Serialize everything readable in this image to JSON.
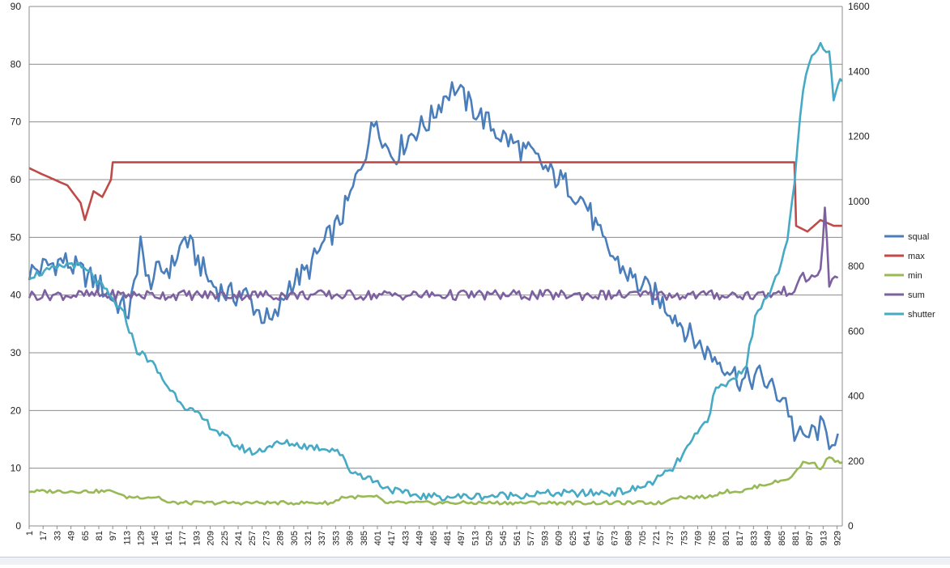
{
  "chart_data": {
    "type": "line",
    "title": "",
    "xlabel": "",
    "ylabel": "",
    "y_left": {
      "min": 0,
      "max": 90,
      "ticks": [
        0,
        10,
        20,
        30,
        40,
        50,
        60,
        70,
        80,
        90
      ]
    },
    "y_right": {
      "min": 0,
      "max": 1600,
      "ticks": [
        0,
        200,
        400,
        600,
        800,
        1000,
        1200,
        1400,
        1600
      ]
    },
    "x": {
      "min": 1,
      "max": 935,
      "tick_labels": [
        1,
        17,
        33,
        49,
        65,
        81,
        97,
        113,
        129,
        145,
        161,
        177,
        193,
        209,
        225,
        241,
        257,
        273,
        289,
        305,
        321,
        337,
        353,
        369,
        385,
        401,
        417,
        433,
        449,
        465,
        481,
        497,
        513,
        529,
        545,
        561,
        577,
        593,
        609,
        625,
        641,
        657,
        673,
        689,
        705,
        721,
        737,
        753,
        769,
        785,
        801,
        817,
        833,
        849,
        865,
        881,
        897,
        913,
        929
      ]
    },
    "grid": "horizontal",
    "legend_position": "right",
    "series": [
      {
        "name": "squal",
        "axis": "left",
        "color": "#4a7ebb",
        "points": [
          [
            1,
            44
          ],
          [
            20,
            45
          ],
          [
            40,
            46
          ],
          [
            60,
            44
          ],
          [
            80,
            42
          ],
          [
            100,
            39
          ],
          [
            115,
            37
          ],
          [
            125,
            43
          ],
          [
            129,
            52
          ],
          [
            135,
            42
          ],
          [
            150,
            44
          ],
          [
            165,
            45
          ],
          [
            180,
            50
          ],
          [
            195,
            46
          ],
          [
            210,
            42
          ],
          [
            230,
            40
          ],
          [
            250,
            40
          ],
          [
            265,
            37
          ],
          [
            280,
            35
          ],
          [
            290,
            38
          ],
          [
            300,
            42
          ],
          [
            320,
            44
          ],
          [
            340,
            49
          ],
          [
            355,
            52
          ],
          [
            370,
            57
          ],
          [
            385,
            64
          ],
          [
            400,
            71
          ],
          [
            410,
            66
          ],
          [
            420,
            64
          ],
          [
            440,
            68
          ],
          [
            460,
            70
          ],
          [
            480,
            75
          ],
          [
            490,
            76
          ],
          [
            500,
            74
          ],
          [
            520,
            71
          ],
          [
            540,
            68
          ],
          [
            560,
            66
          ],
          [
            580,
            64
          ],
          [
            600,
            61
          ],
          [
            620,
            59
          ],
          [
            640,
            56
          ],
          [
            660,
            49
          ],
          [
            680,
            45
          ],
          [
            700,
            42
          ],
          [
            720,
            40
          ],
          [
            740,
            37
          ],
          [
            760,
            33
          ],
          [
            780,
            30
          ],
          [
            800,
            28
          ],
          [
            820,
            25
          ],
          [
            840,
            26
          ],
          [
            860,
            23
          ],
          [
            870,
            22
          ],
          [
            880,
            16
          ],
          [
            890,
            15
          ],
          [
            900,
            16
          ],
          [
            910,
            17
          ],
          [
            920,
            15
          ],
          [
            930,
            16
          ]
        ]
      },
      {
        "name": "max",
        "axis": "left",
        "color": "#be4b48",
        "points": [
          [
            1,
            62
          ],
          [
            15,
            61
          ],
          [
            30,
            60
          ],
          [
            45,
            59
          ],
          [
            60,
            56
          ],
          [
            65,
            53
          ],
          [
            75,
            58
          ],
          [
            85,
            57
          ],
          [
            95,
            60
          ],
          [
            97,
            63
          ],
          [
            880,
            63
          ],
          [
            882,
            52
          ],
          [
            895,
            51
          ],
          [
            910,
            53
          ],
          [
            925,
            52
          ],
          [
            935,
            52
          ]
        ]
      },
      {
        "name": "min",
        "axis": "left",
        "color": "#98b954",
        "points": [
          [
            1,
            6
          ],
          [
            90,
            6
          ],
          [
            100,
            6
          ],
          [
            110,
            5
          ],
          [
            150,
            5
          ],
          [
            160,
            4
          ],
          [
            350,
            4
          ],
          [
            360,
            5
          ],
          [
            400,
            5
          ],
          [
            410,
            4
          ],
          [
            730,
            4
          ],
          [
            740,
            5
          ],
          [
            780,
            5
          ],
          [
            800,
            6
          ],
          [
            820,
            6
          ],
          [
            840,
            7
          ],
          [
            870,
            8
          ],
          [
            880,
            9
          ],
          [
            890,
            11
          ],
          [
            900,
            11
          ],
          [
            910,
            10
          ],
          [
            920,
            12
          ],
          [
            930,
            11
          ],
          [
            935,
            11
          ]
        ]
      },
      {
        "name": "sum",
        "axis": "left",
        "color": "#7d60a0",
        "points": [
          [
            1,
            40
          ],
          [
            100,
            40
          ],
          [
            200,
            40
          ],
          [
            300,
            40
          ],
          [
            400,
            40
          ],
          [
            500,
            40
          ],
          [
            600,
            40
          ],
          [
            700,
            40
          ],
          [
            800,
            40
          ],
          [
            850,
            40
          ],
          [
            880,
            41
          ],
          [
            890,
            43
          ],
          [
            900,
            43
          ],
          [
            910,
            44
          ],
          [
            915,
            55
          ],
          [
            920,
            42
          ],
          [
            930,
            43
          ]
        ]
      },
      {
        "name": "shutter",
        "axis": "right",
        "color": "#46aac5",
        "points": [
          [
            1,
            770
          ],
          [
            30,
            790
          ],
          [
            50,
            810
          ],
          [
            70,
            780
          ],
          [
            90,
            720
          ],
          [
            110,
            650
          ],
          [
            125,
            540
          ],
          [
            140,
            510
          ],
          [
            160,
            430
          ],
          [
            180,
            370
          ],
          [
            200,
            330
          ],
          [
            220,
            285
          ],
          [
            240,
            245
          ],
          [
            260,
            225
          ],
          [
            280,
            250
          ],
          [
            300,
            255
          ],
          [
            320,
            245
          ],
          [
            340,
            240
          ],
          [
            355,
            235
          ],
          [
            370,
            170
          ],
          [
            390,
            150
          ],
          [
            410,
            120
          ],
          [
            430,
            100
          ],
          [
            460,
            90
          ],
          [
            500,
            90
          ],
          [
            560,
            95
          ],
          [
            600,
            100
          ],
          [
            640,
            100
          ],
          [
            680,
            105
          ],
          [
            700,
            115
          ],
          [
            720,
            140
          ],
          [
            740,
            175
          ],
          [
            760,
            250
          ],
          [
            780,
            330
          ],
          [
            790,
            420
          ],
          [
            810,
            450
          ],
          [
            825,
            500
          ],
          [
            835,
            640
          ],
          [
            845,
            700
          ],
          [
            855,
            740
          ],
          [
            865,
            800
          ],
          [
            872,
            880
          ],
          [
            880,
            1060
          ],
          [
            890,
            1350
          ],
          [
            900,
            1440
          ],
          [
            910,
            1480
          ],
          [
            920,
            1450
          ],
          [
            925,
            1320
          ],
          [
            930,
            1370
          ],
          [
            935,
            1370
          ]
        ]
      }
    ]
  }
}
